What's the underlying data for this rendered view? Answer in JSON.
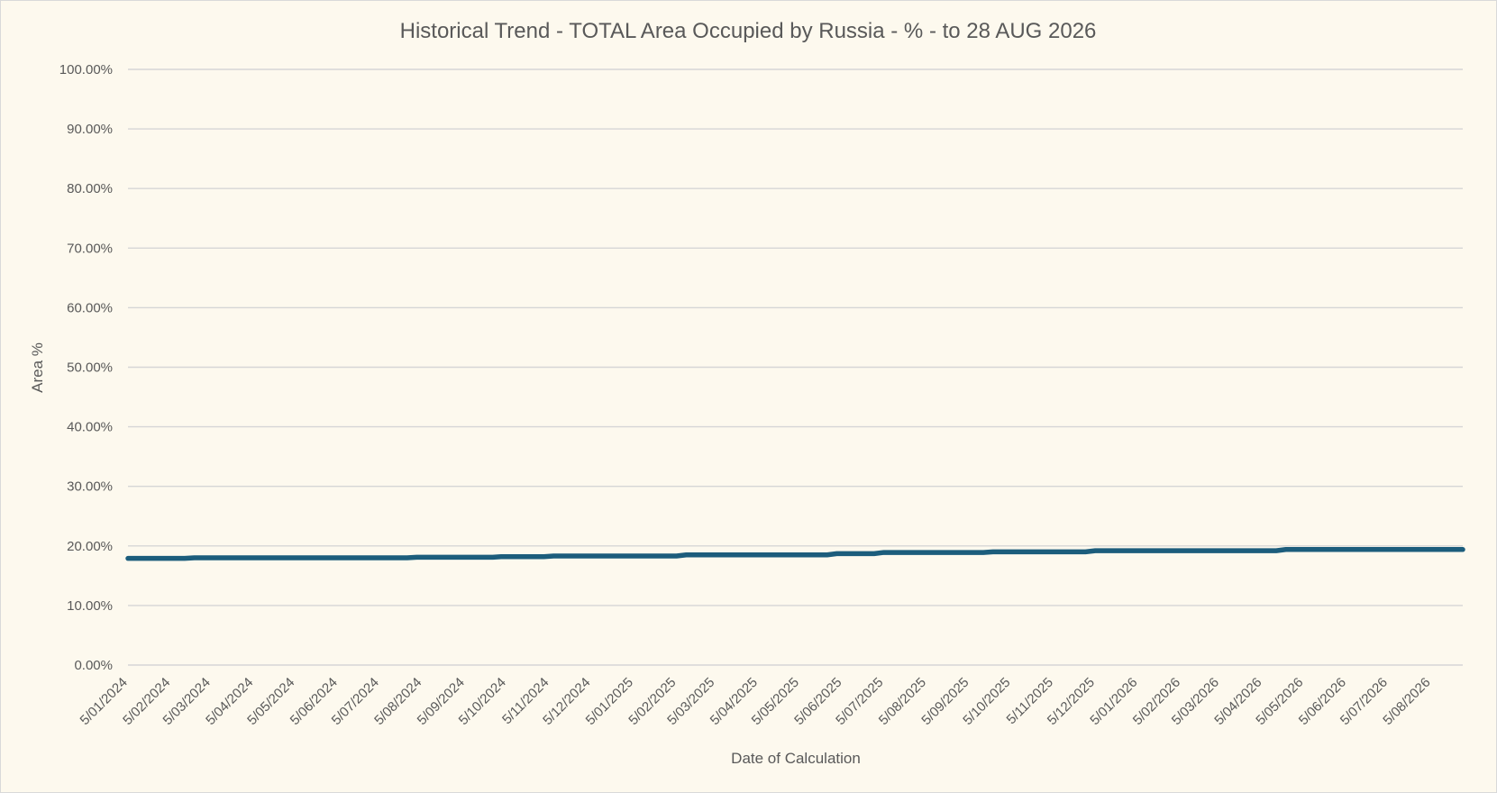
{
  "chart_data": {
    "type": "line",
    "title": "Historical Trend - TOTAL Area Occupied by Russia - % - to 28 AUG 2026",
    "xlabel": "Date of Calculation",
    "ylabel": "Area %",
    "y_ticks": [
      "0.00%",
      "10.00%",
      "20.00%",
      "30.00%",
      "40.00%",
      "50.00%",
      "60.00%",
      "70.00%",
      "80.00%",
      "90.00%",
      "100.00%"
    ],
    "ylim": [
      0,
      100
    ],
    "x_ticks": [
      "5/01/2024",
      "5/02/2024",
      "5/03/2024",
      "5/04/2024",
      "5/05/2024",
      "5/06/2024",
      "5/07/2024",
      "5/08/2024",
      "5/09/2024",
      "5/10/2024",
      "5/11/2024",
      "5/12/2024",
      "5/01/2025",
      "5/02/2025",
      "5/03/2025",
      "5/04/2025",
      "5/05/2025",
      "5/06/2025",
      "5/07/2025",
      "5/08/2025",
      "5/09/2025",
      "5/10/2025",
      "5/11/2025",
      "5/12/2025",
      "5/01/2026",
      "5/02/2026",
      "5/03/2026",
      "5/04/2026",
      "5/05/2026",
      "5/06/2026",
      "5/07/2026",
      "5/08/2026"
    ],
    "xlim": [
      "2024-01-05",
      "2026-08-28"
    ],
    "grid": true,
    "legend": "none",
    "series_color": "#1c5d7c",
    "series": [
      {
        "x": [
          "2024-01-05",
          "2024-02-15",
          "2024-02-22",
          "2024-05-25",
          "2024-06-01",
          "2024-07-25",
          "2024-08-01",
          "2024-09-25",
          "2024-10-01",
          "2024-11-01",
          "2024-11-08",
          "2025-02-05",
          "2025-02-12",
          "2025-05-25",
          "2025-06-01",
          "2025-06-28",
          "2025-07-05",
          "2025-09-15",
          "2025-09-22",
          "2025-11-28",
          "2025-12-05",
          "2026-04-15",
          "2026-04-22",
          "2026-08-28"
        ],
        "y": [
          17.9,
          17.9,
          18.0,
          18.0,
          18.0,
          18.0,
          18.1,
          18.1,
          18.2,
          18.2,
          18.3,
          18.3,
          18.5,
          18.5,
          18.7,
          18.7,
          18.9,
          18.9,
          19.0,
          19.0,
          19.2,
          19.2,
          19.4,
          19.4
        ]
      }
    ]
  }
}
